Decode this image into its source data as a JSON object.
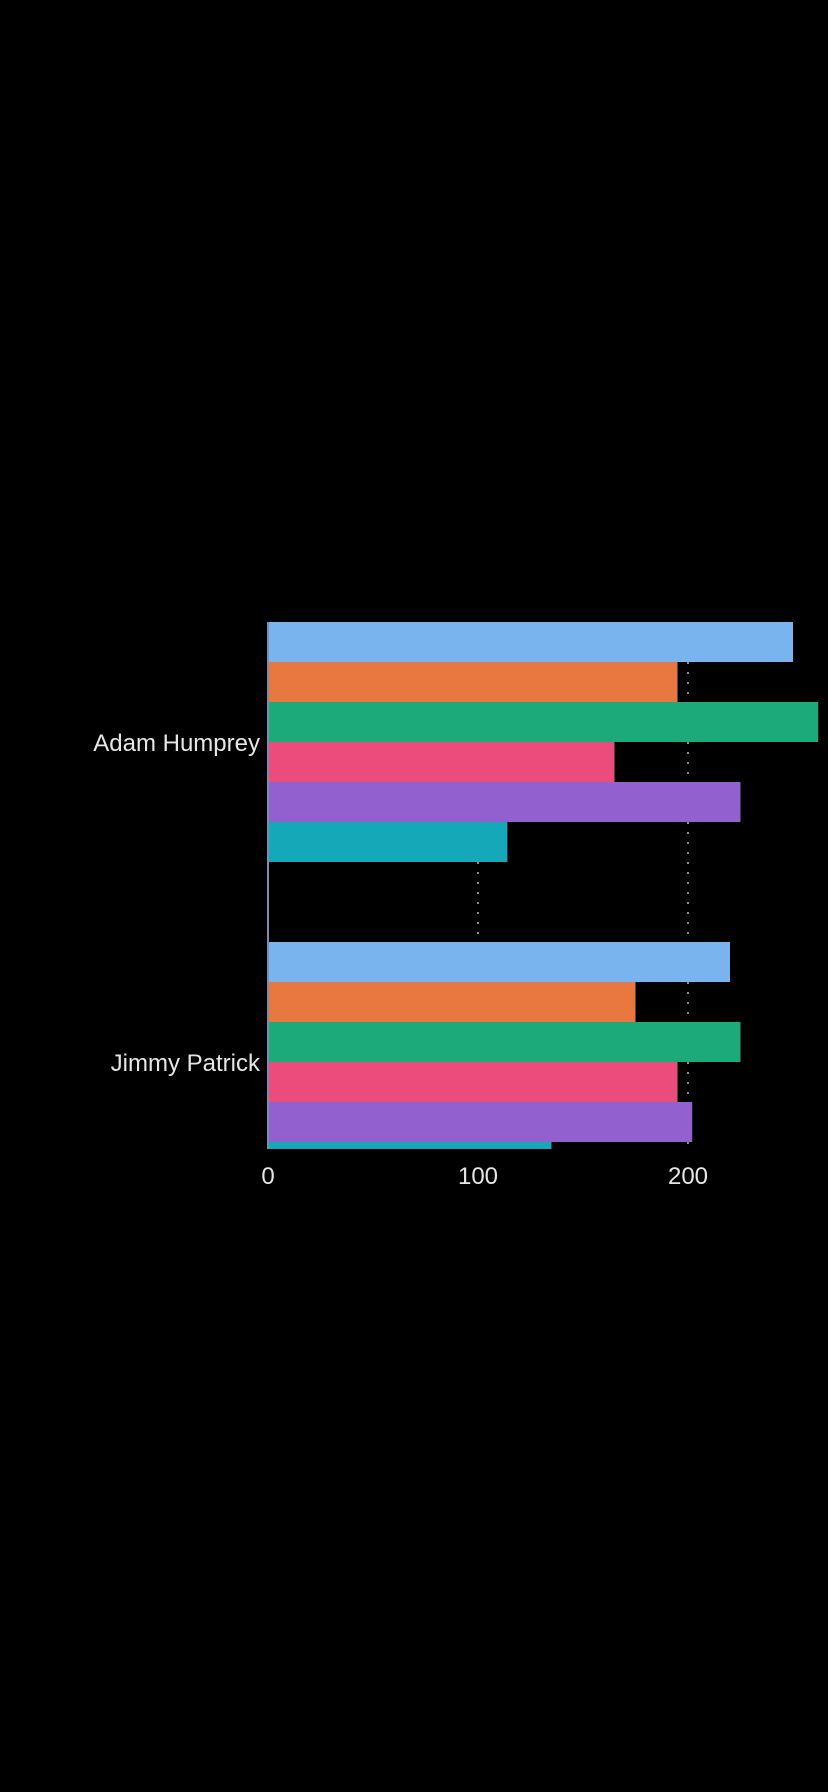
{
  "chart_data": {
    "type": "bar",
    "orientation": "horizontal",
    "categories": [
      "Adam Humprey",
      "Jimmy Patrick"
    ],
    "series": [
      {
        "color": "#7ab4ef",
        "values": [
          250,
          220
        ]
      },
      {
        "color": "#e87840",
        "values": [
          195,
          175
        ]
      },
      {
        "color": "#1caa7a",
        "values": [
          262,
          225
        ]
      },
      {
        "color": "#eb4c7c",
        "values": [
          165,
          195
        ]
      },
      {
        "color": "#9361cf",
        "values": [
          225,
          202
        ]
      },
      {
        "color": "#14a8b8",
        "values": [
          114,
          135
        ]
      }
    ],
    "xticks": [
      "0",
      "100",
      "200"
    ],
    "xlim": [
      0,
      275
    ],
    "gridlines": "dotted vertical at 100 and 200",
    "legend": "none",
    "title": "",
    "xlabel": "",
    "ylabel": ""
  }
}
